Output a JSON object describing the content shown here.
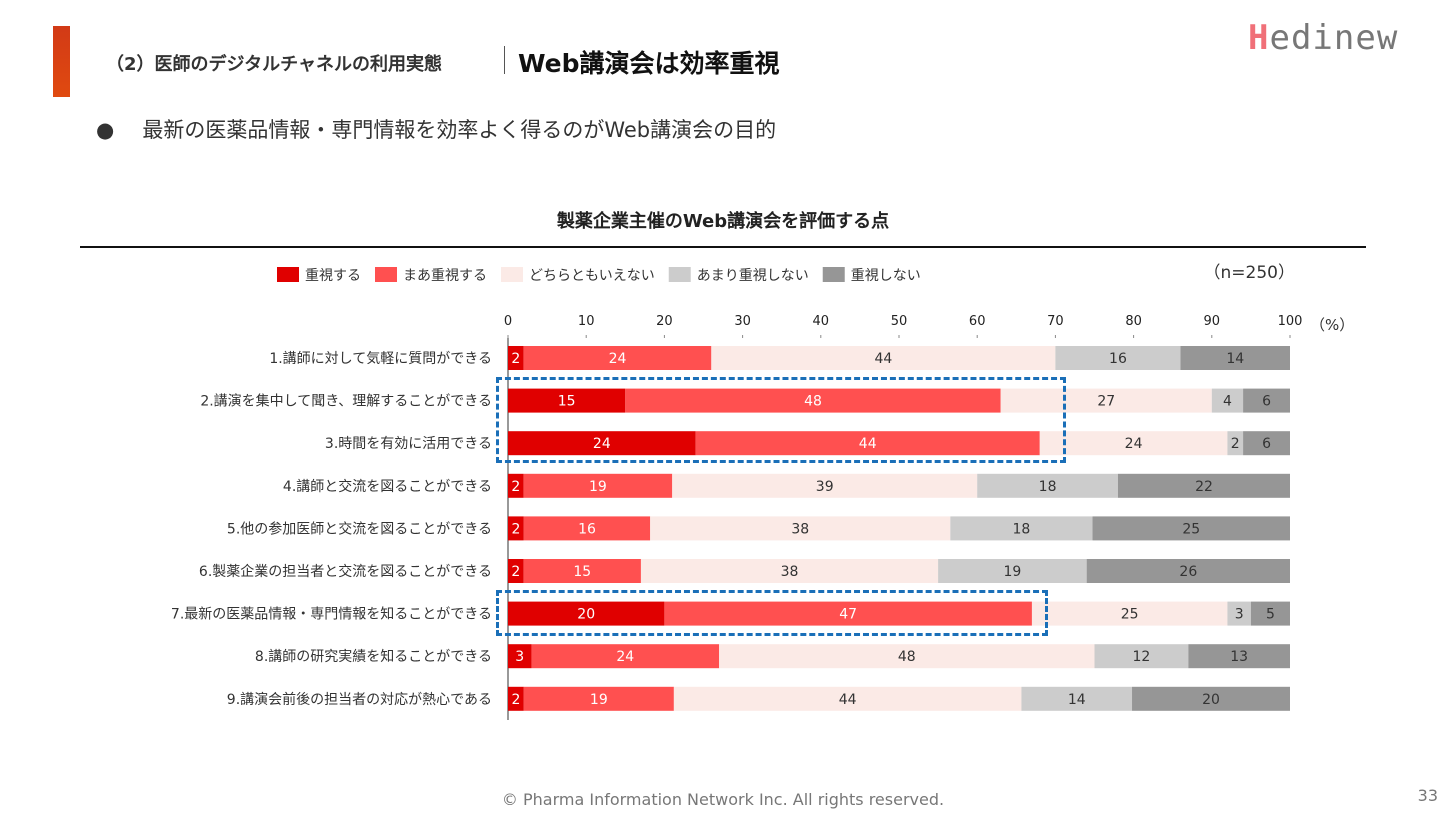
{
  "header": {
    "section": "（2）医師のデジタルチャネルの利用実態",
    "title": "Web講演会は効率重視",
    "logo": "Medinew"
  },
  "bullet": "最新の医薬品情報・専門情報を効率よく得るのがWeb講演会の目的",
  "footer": "© Pharma Information Network Inc.  All rights reserved.",
  "page_number": "33",
  "chart_data": {
    "type": "bar",
    "orientation": "horizontal",
    "stacked": true,
    "title": "製薬企業主催のWeb講演会を評価する点",
    "note": "（n=250）",
    "unit": "（%）",
    "xlim": [
      0,
      100
    ],
    "xticks": [
      0,
      10,
      20,
      30,
      40,
      50,
      60,
      70,
      80,
      90,
      100
    ],
    "legend_position": "top",
    "categories": [
      "1.講師に対して気軽に質問ができる",
      "2.講演を集中して聞き、理解することができる",
      "3.時間を有効に活用できる",
      "4.講師と交流を図ることができる",
      "5.他の参加医師と交流を図ることができる",
      "6.製薬企業の担当者と交流を図ることができる",
      "7.最新の医薬品情報・専門情報を知ることができる",
      "8.講師の研究実績を知ることができる",
      "9.講演会前後の担当者の対応が熱心である"
    ],
    "series": [
      {
        "name": "重視する",
        "color": "#e00000",
        "values": [
          2,
          15,
          24,
          2,
          2,
          2,
          20,
          3,
          2
        ]
      },
      {
        "name": "まあ重視する",
        "color": "#ff5050",
        "values": [
          24,
          48,
          44,
          19,
          16,
          15,
          47,
          24,
          19
        ]
      },
      {
        "name": "どちらともいえない",
        "color": "#fbeae6",
        "values": [
          44,
          27,
          24,
          39,
          38,
          38,
          25,
          48,
          44
        ]
      },
      {
        "name": "あまり重視しない",
        "color": "#cccccc",
        "values": [
          16,
          4,
          2,
          18,
          18,
          19,
          3,
          12,
          14
        ]
      },
      {
        "name": "重視しない",
        "color": "#969696",
        "values": [
          14,
          6,
          6,
          22,
          25,
          26,
          5,
          13,
          20
        ]
      }
    ],
    "highlighted_categories": [
      2,
      3,
      7
    ]
  }
}
